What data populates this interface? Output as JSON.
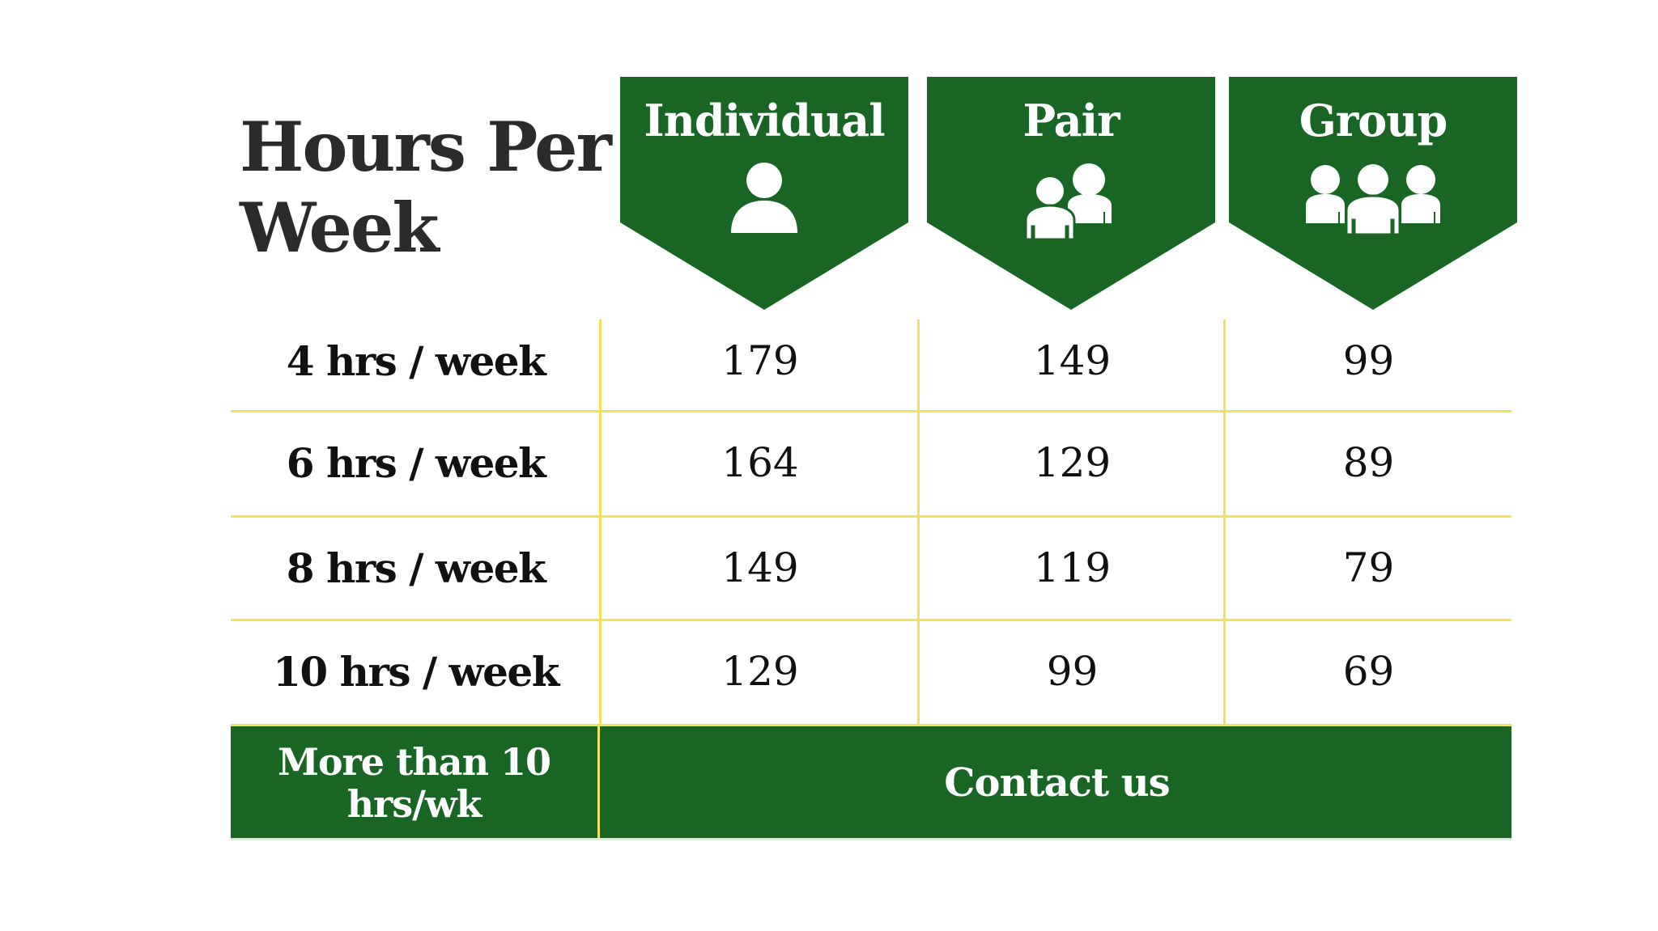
{
  "title_line1": "Hours Per",
  "title_line2": "Week",
  "columns": [
    {
      "label": "Individual",
      "icon": "person-icon"
    },
    {
      "label": "Pair",
      "icon": "two-people-icon"
    },
    {
      "label": "Group",
      "icon": "three-people-icon"
    }
  ],
  "rows": [
    {
      "label": "4 hrs / week",
      "values": [
        "179",
        "149",
        "99"
      ]
    },
    {
      "label": "6 hrs / week",
      "values": [
        "164",
        "129",
        "89"
      ]
    },
    {
      "label": "8 hrs / week",
      "values": [
        "149",
        "119",
        "79"
      ]
    },
    {
      "label": "10 hrs / week",
      "values": [
        "129",
        "99",
        "69"
      ]
    }
  ],
  "footer": {
    "label": "More than 10 hrs/wk",
    "contact": "Contact us"
  },
  "colors": {
    "green": "#186524",
    "gridline": "#f3e15b"
  }
}
